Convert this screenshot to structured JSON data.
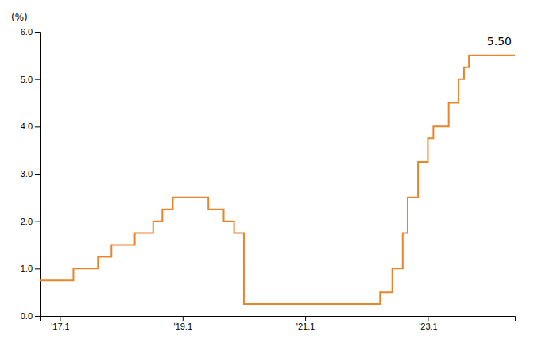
{
  "chart_data": {
    "type": "step",
    "y_label": "(%)",
    "annotations": [
      "5.50"
    ],
    "color": "#E8842C",
    "x": [
      2016.75,
      2017.3,
      2017.7,
      2017.92,
      2018.3,
      2018.6,
      2018.75,
      2018.92,
      2019.5,
      2019.75,
      2019.92,
      2020.08,
      2021.92,
      2022.3,
      2022.5,
      2022.67,
      2022.75,
      2022.92,
      2023.08,
      2023.17,
      2023.42,
      2023.58,
      2023.67,
      2023.75,
      2024.5
    ],
    "values": [
      0.75,
      1.0,
      1.25,
      1.5,
      1.75,
      2.0,
      2.25,
      2.5,
      2.25,
      2.0,
      1.75,
      0.25,
      0.25,
      0.5,
      1.0,
      1.75,
      2.5,
      3.25,
      3.75,
      4.0,
      4.5,
      5.0,
      5.25,
      5.5,
      5.5
    ],
    "xlim": [
      2016.75,
      2024.5
    ],
    "ylim": [
      0.0,
      6.0
    ],
    "xticks": [
      {
        "value": 2017.08,
        "label": "'17.1"
      },
      {
        "value": 2019.08,
        "label": "'19.1"
      },
      {
        "value": 2021.08,
        "label": "'21.1"
      },
      {
        "value": 2023.08,
        "label": "'23.1"
      }
    ],
    "yticks": [
      {
        "value": 0.0,
        "label": "0.0"
      },
      {
        "value": 1.0,
        "label": "1.0"
      },
      {
        "value": 2.0,
        "label": "2.0"
      },
      {
        "value": 3.0,
        "label": "3.0"
      },
      {
        "value": 4.0,
        "label": "4.0"
      },
      {
        "value": 5.0,
        "label": "5.0"
      },
      {
        "value": 6.0,
        "label": "6.0"
      }
    ],
    "grid": false
  }
}
